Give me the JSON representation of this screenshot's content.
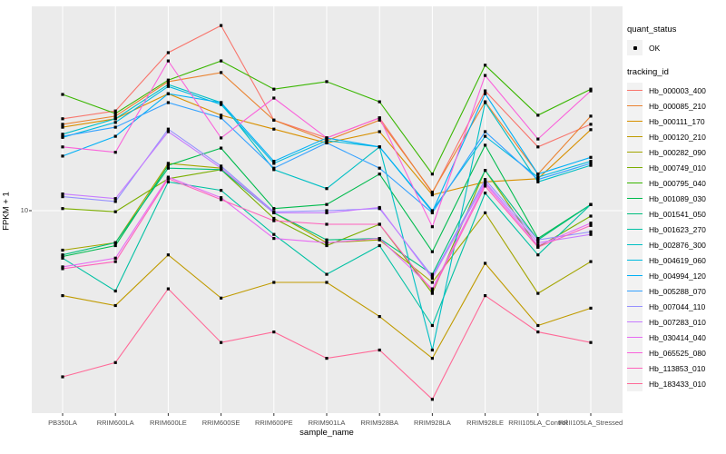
{
  "figure": {
    "y_tick_label": "10"
  },
  "legend": {
    "quant_title": "quant_status",
    "quant_item": "OK",
    "tracking_title": "tracking_id"
  },
  "chart_data": {
    "type": "line",
    "title": "",
    "xlabel": "sample_name",
    "ylabel": "FPKM + 1",
    "y_scale": "log10",
    "y_ticks": [
      10
    ],
    "ylim_approx": [
      1.6,
      65
    ],
    "grid": "ggplot-default",
    "legend_position": "right",
    "marker": "black-point",
    "quant_status_of_all_points": "OK",
    "panel_bg": "#EBEBEB",
    "grid_color": "#FFFFFF",
    "categories": [
      "PB350LA",
      "RRIM600LA",
      "RRIM600LE",
      "RRIM600SE",
      "RRIM600PE",
      "RRIM901LA",
      "RRIM928BA",
      "RRIM928LA",
      "RRIM928LE",
      "RRII105LA_Control",
      "RRII105LA_Stressed"
    ],
    "series": [
      {
        "name": "Hb_000003_400",
        "color": "#F8766D",
        "values": [
          23.7,
          25.5,
          44.1,
          56.9,
          23.4,
          19.8,
          23.9,
          11.8,
          30.8,
          18.2,
          22.5
        ]
      },
      {
        "name": "Hb_000085_210",
        "color": "#EA8331",
        "values": [
          22.5,
          24.3,
          33.6,
          36.6,
          23.4,
          19.3,
          23.4,
          11.9,
          27.8,
          14.1,
          24.3
        ]
      },
      {
        "name": "Hb_000111_170",
        "color": "#D89000",
        "values": [
          21.9,
          23.7,
          30.0,
          24.5,
          21.5,
          18.9,
          21.0,
          11.6,
          13.1,
          13.5,
          21.4
        ]
      },
      {
        "name": "Hb_000120_210",
        "color": "#C09B00",
        "values": [
          4.5,
          4.1,
          6.6,
          4.4,
          5.1,
          5.1,
          3.7,
          2.5,
          6.1,
          3.4,
          4.0
        ]
      },
      {
        "name": "Hb_000282_090",
        "color": "#A3A500",
        "values": [
          6.9,
          7.4,
          15.6,
          14.9,
          9.8,
          7.4,
          7.6,
          5.1,
          9.8,
          4.6,
          6.2
        ]
      },
      {
        "name": "Hb_000749_010",
        "color": "#7CAE00",
        "values": [
          10.2,
          9.9,
          13.5,
          14.7,
          9.3,
          7.2,
          8.8,
          4.6,
          14.6,
          7.1,
          9.5
        ]
      },
      {
        "name": "Hb_000795_040",
        "color": "#39B600",
        "values": [
          29.8,
          24.9,
          34.1,
          40.8,
          31.3,
          33.6,
          27.8,
          14.1,
          39.2,
          24.5,
          31.3
        ]
      },
      {
        "name": "Hb_001089_030",
        "color": "#00BB4E",
        "values": [
          6.5,
          7.2,
          15.3,
          18.0,
          10.2,
          10.6,
          14.1,
          6.8,
          18.5,
          7.7,
          10.6
        ]
      },
      {
        "name": "Hb_001541_050",
        "color": "#00BF7D",
        "values": [
          6.6,
          7.4,
          14.9,
          14.7,
          9.8,
          7.6,
          7.7,
          5.5,
          14.6,
          7.6,
          10.6
        ]
      },
      {
        "name": "Hb_001623_270",
        "color": "#00C1A3",
        "values": [
          6.4,
          4.7,
          13.1,
          12.1,
          8.0,
          5.5,
          7.2,
          3.4,
          11.8,
          6.6,
          10.6
        ]
      },
      {
        "name": "Hb_002876_300",
        "color": "#00BFC4",
        "values": [
          20.5,
          23.7,
          32.7,
          27.6,
          14.7,
          12.3,
          18.2,
          2.7,
          27.6,
          13.1,
          15.3
        ]
      },
      {
        "name": "Hb_004619_060",
        "color": "#00BAE0",
        "values": [
          19.9,
          22.9,
          32.1,
          27.1,
          15.6,
          19.3,
          18.2,
          10.0,
          20.1,
          13.7,
          15.9
        ]
      },
      {
        "name": "Hb_004994_120",
        "color": "#00B0F6",
        "values": [
          16.7,
          20.1,
          30.0,
          27.6,
          15.9,
          19.8,
          18.2,
          9.9,
          30.0,
          14.1,
          16.5
        ]
      },
      {
        "name": "Hb_005288_070",
        "color": "#35A2FF",
        "values": [
          20.1,
          21.9,
          27.6,
          23.9,
          14.9,
          18.9,
          14.9,
          9.8,
          21.0,
          13.4,
          15.6
        ]
      },
      {
        "name": "Hb_007044_110",
        "color": "#9590FF",
        "values": [
          11.4,
          10.9,
          21.5,
          15.2,
          9.9,
          10.0,
          10.2,
          5.4,
          13.4,
          7.6,
          8.2
        ]
      },
      {
        "name": "Hb_007283_010",
        "color": "#C77CFF",
        "values": [
          11.7,
          11.2,
          21.0,
          14.9,
          9.8,
          9.8,
          10.3,
          5.3,
          13.1,
          7.4,
          8.0
        ]
      },
      {
        "name": "Hb_030414_040",
        "color": "#E76BF3",
        "values": [
          5.9,
          6.4,
          13.7,
          11.3,
          7.7,
          7.4,
          7.7,
          4.8,
          12.9,
          7.2,
          8.9
        ]
      },
      {
        "name": "Hb_065525_080",
        "color": "#FA62DB",
        "values": [
          18.2,
          17.3,
          40.8,
          19.8,
          28.8,
          19.8,
          23.9,
          8.6,
          35.6,
          19.6,
          30.8
        ]
      },
      {
        "name": "Hb_113853_010",
        "color": "#FF62BC",
        "values": [
          5.8,
          6.2,
          13.5,
          11.1,
          9.1,
          8.8,
          8.8,
          4.7,
          12.6,
          7.1,
          8.7
        ]
      },
      {
        "name": "Hb_183433_010",
        "color": "#FF6A98",
        "values": [
          2.1,
          2.4,
          4.8,
          2.9,
          3.2,
          2.5,
          2.7,
          1.7,
          4.5,
          3.2,
          2.9
        ]
      }
    ]
  }
}
